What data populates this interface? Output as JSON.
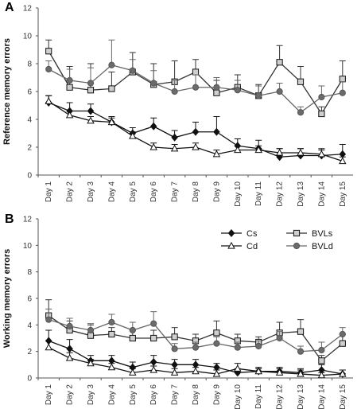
{
  "chart_data": [
    {
      "type": "line",
      "panel_label": "A",
      "ylabel": "Reference memory errors",
      "xlabel": "",
      "ylim": [
        0,
        12
      ],
      "yticks": [
        0,
        2,
        4,
        6,
        8,
        10,
        12
      ],
      "categories": [
        "Day 1",
        "Day 2",
        "Day 3",
        "Day 4",
        "Day 5",
        "Day 6",
        "Day 7",
        "Day 8",
        "Day 9",
        "Day 10",
        "Day 11",
        "Day 12",
        "Day 13",
        "Day 14",
        "Day 15"
      ],
      "grid": false,
      "series": [
        {
          "name": "Cs",
          "marker": "diamond",
          "fill": "#111111",
          "stroke": "#111111",
          "values": [
            5.2,
            4.6,
            4.6,
            3.8,
            3.0,
            3.5,
            2.7,
            3.1,
            3.1,
            2.1,
            1.9,
            1.3,
            1.4,
            1.4,
            1.5
          ],
          "errors": [
            0.5,
            0.6,
            0.5,
            0.4,
            0.4,
            0.6,
            0.5,
            0.7,
            1.1,
            0.5,
            0.6,
            0.6,
            0.5,
            0.5,
            0.7
          ]
        },
        {
          "name": "Cd",
          "marker": "triangle",
          "fill": "#ffffff",
          "stroke": "#111111",
          "values": [
            5.3,
            4.3,
            3.9,
            3.8,
            2.8,
            2.0,
            1.9,
            2.0,
            1.5,
            1.8,
            1.8,
            1.6,
            1.6,
            1.5,
            1.0
          ],
          "errors": [
            0.4,
            0.3,
            0.3,
            0.3,
            0.3,
            0.3,
            0.3,
            0.3,
            0.3,
            0.3,
            0.3,
            0.3,
            0.3,
            0.3,
            0.3
          ]
        },
        {
          "name": "BVLs",
          "marker": "square",
          "fill": "#cfcfcf",
          "stroke": "#111111",
          "values": [
            8.9,
            6.3,
            6.1,
            6.2,
            7.4,
            6.5,
            6.7,
            7.4,
            5.9,
            6.3,
            5.7,
            8.1,
            6.7,
            4.4,
            6.9
          ],
          "errors": [
            0.8,
            1.5,
            1.9,
            1.2,
            1.4,
            1.5,
            1.5,
            0.9,
            0.9,
            0.9,
            0.8,
            1.2,
            1.1,
            0.5,
            1.3
          ]
        },
        {
          "name": "BVLd",
          "marker": "circle",
          "fill": "#6b6b6b",
          "stroke": "#555555",
          "values": [
            7.6,
            6.8,
            6.6,
            7.9,
            7.5,
            6.6,
            6.0,
            6.3,
            6.3,
            6.1,
            5.7,
            6.0,
            4.5,
            5.6,
            5.9
          ],
          "errors": [
            0.6,
            0.8,
            1.1,
            1.8,
            0.8,
            0.9,
            0.8,
            0.9,
            0.7,
            0.7,
            0.7,
            0.6,
            0.4,
            0.8,
            0.8
          ]
        }
      ]
    },
    {
      "type": "line",
      "panel_label": "B",
      "ylabel": "Working memory errors",
      "xlabel": "",
      "ylim": [
        0,
        12
      ],
      "yticks": [
        0,
        2,
        4,
        6,
        8,
        10,
        12
      ],
      "categories": [
        "Day 1",
        "Day 2",
        "Day 3",
        "Day 4",
        "Day 5",
        "Day 6",
        "Day 7",
        "Day 8",
        "Day 9",
        "Day 10",
        "Day 11",
        "Day 12",
        "Day 13",
        "Day 14",
        "Day 15"
      ],
      "grid": false,
      "legend": {
        "placement": "top-right",
        "entries": [
          "Cs",
          "Cd",
          "BVLs",
          "BVLd"
        ]
      },
      "series": [
        {
          "name": "Cs",
          "marker": "diamond",
          "fill": "#111111",
          "stroke": "#111111",
          "values": [
            2.8,
            2.2,
            1.3,
            1.3,
            0.8,
            1.2,
            1.0,
            1.0,
            0.8,
            0.4,
            0.5,
            0.5,
            0.4,
            0.6,
            0.3
          ],
          "errors": [
            0.8,
            0.7,
            0.4,
            0.4,
            0.4,
            0.5,
            0.4,
            0.4,
            0.3,
            0.3,
            0.2,
            0.3,
            0.3,
            0.4,
            0.3
          ]
        },
        {
          "name": "Cd",
          "marker": "triangle",
          "fill": "#ffffff",
          "stroke": "#111111",
          "values": [
            2.3,
            1.5,
            1.1,
            0.8,
            0.4,
            0.6,
            0.4,
            0.5,
            0.3,
            0.7,
            0.5,
            0.4,
            0.3,
            0.2,
            0.3
          ],
          "errors": [
            0.5,
            0.4,
            0.3,
            0.3,
            0.3,
            0.3,
            0.3,
            0.3,
            0.3,
            0.4,
            0.3,
            0.3,
            0.3,
            0.2,
            0.3
          ]
        },
        {
          "name": "BVLs",
          "marker": "square",
          "fill": "#cfcfcf",
          "stroke": "#111111",
          "values": [
            4.7,
            3.6,
            3.2,
            3.3,
            3.0,
            3.0,
            3.1,
            2.8,
            3.4,
            2.8,
            2.7,
            3.4,
            3.5,
            1.3,
            2.6
          ],
          "errors": [
            1.2,
            0.7,
            0.8,
            0.5,
            0.6,
            0.6,
            0.7,
            0.5,
            0.9,
            0.5,
            0.4,
            0.8,
            0.9,
            0.4,
            0.7
          ]
        },
        {
          "name": "BVLd",
          "marker": "circle",
          "fill": "#6b6b6b",
          "stroke": "#555555",
          "values": [
            4.4,
            3.9,
            3.6,
            4.2,
            3.6,
            4.1,
            2.2,
            2.3,
            2.6,
            2.3,
            2.4,
            3.0,
            2.0,
            2.1,
            3.3
          ],
          "errors": [
            0.8,
            0.6,
            0.5,
            0.6,
            0.6,
            0.9,
            0.4,
            0.4,
            0.5,
            0.4,
            0.4,
            0.5,
            0.4,
            0.6,
            0.5
          ]
        }
      ]
    }
  ]
}
